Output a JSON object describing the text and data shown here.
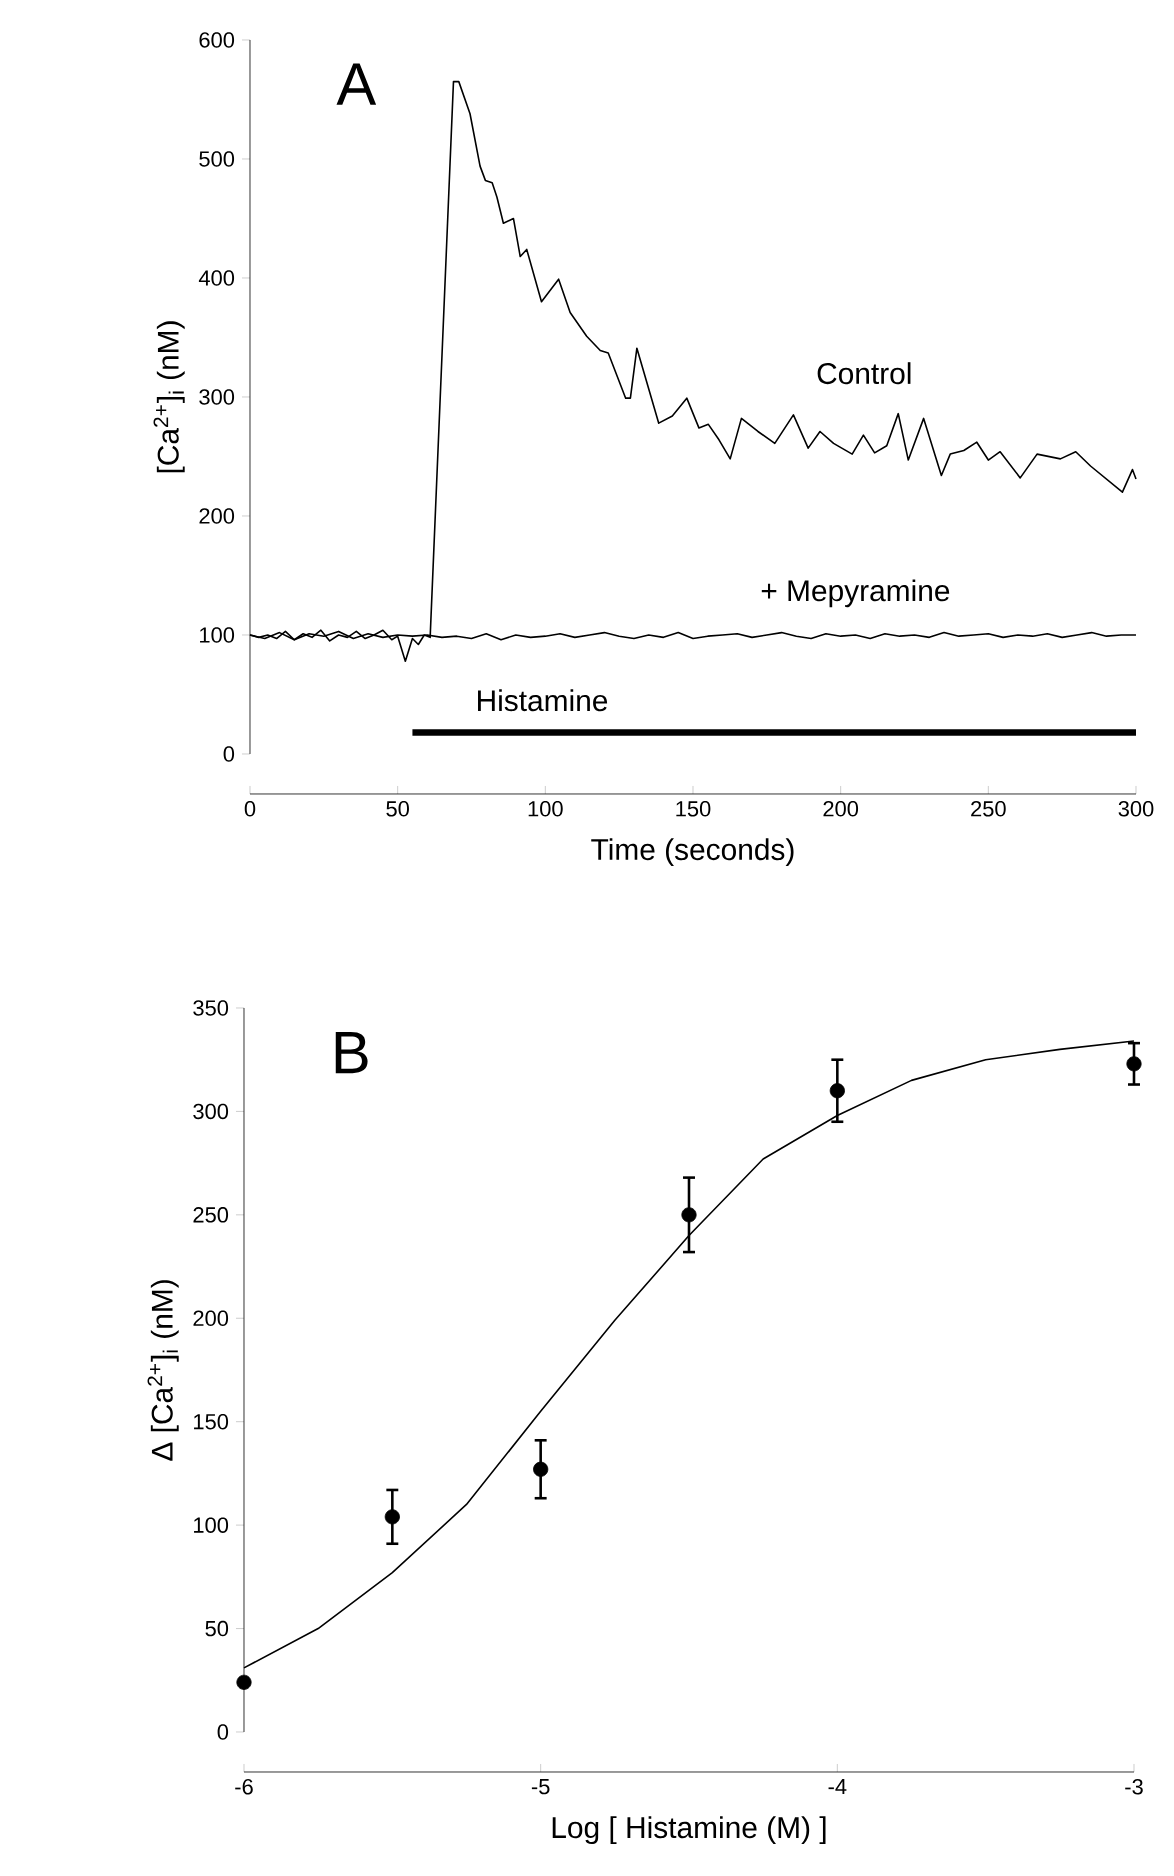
{
  "chart_data": [
    {
      "type": "line",
      "title": "A",
      "xlabel": "Time  (seconds)",
      "ylabel": "[Ca$^{2+}$]$_{i}$  (nM)",
      "xlim": [
        0,
        300
      ],
      "ylim": [
        0,
        600
      ],
      "xticks": [
        0,
        50,
        100,
        150,
        200,
        250,
        300
      ],
      "yticks": [
        0,
        100,
        200,
        300,
        400,
        500,
        600
      ],
      "series": [
        {
          "name": "Control",
          "color": "#000000",
          "x": [
            0,
            3,
            6,
            9,
            12,
            15,
            18,
            21,
            24,
            27,
            30,
            33,
            36,
            39,
            42,
            45,
            48,
            50,
            52.6,
            55,
            57,
            59,
            61,
            68.9,
            70.7,
            74.5,
            77.9,
            79.7,
            82,
            83.6,
            85.8,
            89.2,
            91.5,
            93.7,
            98.7,
            104.5,
            108.4,
            114,
            118.6,
            121.3,
            127.2,
            128.8,
            131,
            138.4,
            143,
            147.9,
            152,
            155.2,
            158.8,
            162.6,
            166.4,
            172,
            177.7,
            184,
            189,
            193,
            197.6,
            203.9,
            207.7,
            211.5,
            215.6,
            219.5,
            222.9,
            228.1,
            234.1,
            237.1,
            241.7,
            246.1,
            250,
            254,
            260.8,
            266.5,
            274.4,
            279.6,
            284.6,
            295.4,
            298.8,
            300
          ],
          "values": [
            100,
            98,
            100,
            97,
            103,
            96,
            101,
            98,
            104,
            95,
            100,
            98,
            103,
            97,
            100,
            104,
            96,
            99,
            78,
            97,
            92,
            100,
            98,
            565,
            565,
            538,
            494,
            482,
            480,
            468,
            446,
            450,
            418,
            424,
            380,
            399,
            371,
            351,
            339,
            337,
            299,
            299,
            341,
            278,
            284,
            299,
            274,
            277,
            264,
            248,
            282,
            271,
            261,
            285,
            257,
            271,
            261,
            252,
            268,
            253,
            259,
            286,
            247,
            282,
            234,
            252,
            255,
            262,
            247,
            254,
            232,
            252,
            248,
            254,
            242,
            220,
            239,
            231
          ]
        },
        {
          "name": "+ Mepyramine",
          "color": "#000000",
          "x": [
            0,
            5,
            10,
            15,
            20,
            25,
            30,
            35,
            40,
            45,
            50,
            55,
            60,
            65,
            70,
            75,
            80,
            85,
            90,
            95,
            100,
            105,
            110,
            115,
            120,
            125,
            130,
            135,
            140,
            145,
            150,
            155,
            160,
            165,
            170,
            175,
            180,
            185,
            190,
            195,
            200,
            205,
            210,
            215,
            220,
            225,
            230,
            235,
            240,
            245,
            250,
            255,
            260,
            265,
            270,
            275,
            280,
            285,
            290,
            295,
            300
          ],
          "values": [
            100,
            97,
            102,
            96,
            101,
            99,
            103,
            97,
            101,
            98,
            100,
            99,
            100,
            98,
            99,
            97,
            101,
            96,
            100,
            98,
            99,
            101,
            98,
            100,
            102,
            99,
            97,
            100,
            98,
            102,
            97,
            99,
            100,
            101,
            98,
            100,
            102,
            99,
            97,
            101,
            99,
            100,
            97,
            101,
            99,
            100,
            98,
            102,
            99,
            100,
            101,
            98,
            100,
            99,
            101,
            98,
            100,
            102,
            99,
            100,
            100
          ]
        },
        {
          "name": "Histamine",
          "color": "#000000",
          "x": [
            55,
            300
          ],
          "values": [
            18,
            18
          ]
        }
      ]
    },
    {
      "type": "scatter",
      "title": "B",
      "xlabel": "Log [ Histamine (M) ]",
      "ylabel": "Δ [Ca$^{2+}$]$_{i}$ (nM)",
      "x": [
        -6,
        -5.5,
        -5,
        -4.5,
        -4,
        -3
      ],
      "xlim": [
        -6,
        -3
      ],
      "ylim": [
        0,
        350
      ],
      "xticks": [
        -6,
        -5,
        -4,
        -3
      ],
      "yticks": [
        0,
        50,
        100,
        150,
        200,
        250,
        300,
        350
      ],
      "series": [
        {
          "color": "#000000",
          "marker": "circle",
          "values": [
            24,
            104,
            127,
            250,
            310,
            323
          ],
          "errors": [
            null,
            13,
            14,
            18,
            15,
            10
          ]
        },
        {
          "type": "line",
          "color": "#000000",
          "x": [
            -6,
            -5.75,
            -5.5,
            -5.25,
            -5,
            -4.75,
            -4.5,
            -4.25,
            -4,
            -3.75,
            -3.5,
            -3.25,
            -3
          ],
          "values": [
            31,
            50,
            77,
            110,
            155,
            199,
            240,
            277,
            298,
            315,
            325,
            330,
            334
          ]
        }
      ]
    }
  ]
}
